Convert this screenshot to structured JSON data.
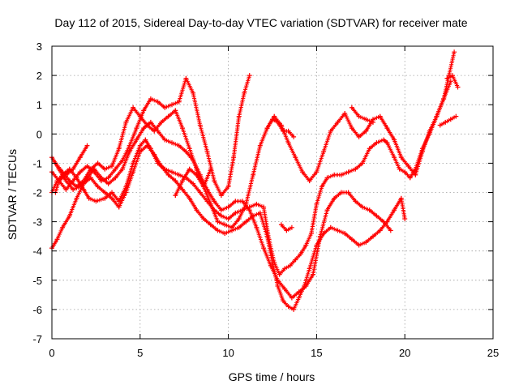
{
  "chart_data": {
    "type": "scatter",
    "title": "Day 112 of 2015, Sidereal Day-to-day VTEC variation (SDTVAR) for receiver mate",
    "xlabel": "GPS time / hours",
    "ylabel": "SDTVAR / TECUs",
    "xlim": [
      0,
      25
    ],
    "ylim": [
      -7,
      3
    ],
    "xticks": [
      "0",
      "5",
      "10",
      "15",
      "20",
      "25"
    ],
    "yticks": [
      "3",
      "2",
      "1",
      "0",
      "-1",
      "-2",
      "-3",
      "-4",
      "-5",
      "-6",
      "-7"
    ],
    "grid": true,
    "marker": "+",
    "color": "#ff0000",
    "series": [
      {
        "x": [
          0.0,
          0.3,
          0.6,
          1.0,
          1.4,
          1.8,
          2.1,
          2.5,
          3.0,
          3.4,
          3.8,
          4.2,
          4.6,
          5.0,
          5.3,
          5.6,
          6.0,
          6.4,
          6.8,
          7.2,
          7.6,
          8.0,
          8.4,
          8.8,
          9.2,
          9.6,
          10.0,
          10.4,
          10.8,
          11.2,
          11.6,
          12.0,
          12.3,
          12.6,
          12.9,
          13.2,
          13.5,
          13.8,
          14.1,
          14.4,
          14.7,
          15.0,
          15.3,
          15.6,
          16.0,
          16.4,
          16.8,
          17.2,
          17.6,
          18.0,
          18.4,
          18.8,
          19.0,
          19.4,
          19.7,
          20.0,
          20.3,
          20.6,
          21.0,
          21.4,
          21.8,
          22.2,
          22.5,
          22.8
        ],
        "y": [
          -2.0,
          -1.6,
          -1.4,
          -1.2,
          -1.5,
          -1.9,
          -2.2,
          -2.3,
          -2.2,
          -2.0,
          -2.3,
          -1.8,
          -1.0,
          -0.4,
          -0.2,
          -0.5,
          -1.0,
          -1.2,
          -1.3,
          -1.4,
          -1.5,
          -1.7,
          -2.0,
          -2.3,
          -2.6,
          -2.8,
          -2.9,
          -2.7,
          -2.6,
          -2.5,
          -2.4,
          -2.5,
          -3.6,
          -4.4,
          -4.8,
          -4.6,
          -4.5,
          -4.3,
          -4.1,
          -3.8,
          -3.4,
          -2.4,
          -1.8,
          -1.5,
          -1.4,
          -1.4,
          -1.3,
          -1.2,
          -1.0,
          -0.5,
          -0.3,
          -0.2,
          -0.3,
          -0.8,
          -1.2,
          -1.3,
          -1.5,
          -1.2,
          -0.5,
          0.0,
          0.6,
          1.2,
          2.0,
          2.8
        ]
      },
      {
        "x": [
          0.0,
          0.3,
          0.6,
          1.0,
          1.4,
          1.8,
          2.2,
          2.6,
          3.0,
          3.4,
          3.8,
          4.2,
          4.6,
          5.0,
          5.4,
          5.8,
          6.2,
          6.6,
          7.0,
          7.4,
          7.8,
          8.2,
          8.6,
          9.0,
          9.4,
          9.8,
          10.2,
          10.6,
          11.0,
          11.4,
          11.8,
          12.2,
          12.5,
          12.8,
          13.1,
          13.4,
          13.7,
          14.0,
          14.3,
          14.6,
          15.0,
          15.4,
          15.8,
          16.2,
          16.6,
          17.0,
          17.4,
          17.8,
          18.2,
          18.6,
          19.0,
          19.4,
          19.8,
          20.0
        ],
        "y": [
          -3.9,
          -3.6,
          -3.2,
          -2.8,
          -2.2,
          -1.7,
          -1.5,
          -1.8,
          -2.0,
          -2.2,
          -2.5,
          -2.0,
          -1.3,
          -0.6,
          -0.4,
          -0.7,
          -1.1,
          -1.4,
          -1.6,
          -1.9,
          -2.2,
          -2.6,
          -2.9,
          -3.1,
          -3.3,
          -3.4,
          -3.3,
          -3.2,
          -3.0,
          -2.8,
          -2.7,
          -3.5,
          -4.4,
          -5.2,
          -5.7,
          -5.9,
          -6.0,
          -5.6,
          -5.2,
          -4.6,
          -3.8,
          -3.4,
          -3.2,
          -3.3,
          -3.4,
          -3.6,
          -3.8,
          -3.7,
          -3.5,
          -3.3,
          -3.0,
          -2.6,
          -2.2,
          -2.9
        ]
      },
      {
        "x": [
          0.0,
          0.4,
          0.8,
          1.2,
          1.6,
          2.0,
          2.4,
          2.8,
          3.2,
          3.6,
          4.0,
          4.4,
          4.8,
          5.2,
          5.6,
          6.0,
          6.4,
          6.8,
          7.2,
          7.6,
          8.0,
          8.4,
          8.8,
          9.2,
          9.6,
          10.0,
          10.4,
          10.8,
          11.2,
          11.6,
          12.0,
          12.4,
          12.8,
          13.2,
          13.6,
          14.0,
          14.4,
          14.8,
          15.2,
          15.6,
          16.0,
          16.4,
          16.8,
          17.2,
          17.6,
          18.0,
          18.4,
          18.8,
          19.2
        ],
        "y": [
          -0.8,
          -1.2,
          -1.6,
          -1.9,
          -1.8,
          -1.5,
          -1.2,
          -1.5,
          -1.7,
          -1.5,
          -1.2,
          -0.6,
          -0.2,
          0.2,
          0.4,
          0.1,
          -0.2,
          -0.3,
          -0.4,
          -0.6,
          -0.9,
          -1.4,
          -1.9,
          -2.3,
          -2.6,
          -2.5,
          -2.3,
          -2.3,
          -2.6,
          -3.2,
          -3.9,
          -4.5,
          -5.0,
          -5.3,
          -5.6,
          -5.4,
          -5.2,
          -4.8,
          -3.5,
          -2.6,
          -2.2,
          -2.0,
          -2.0,
          -2.3,
          -2.5,
          -2.6,
          -2.8,
          -3.0,
          -3.3
        ]
      },
      {
        "x": [
          0.0,
          0.4,
          0.8,
          1.2,
          1.6,
          2.0,
          2.4,
          2.8,
          3.2,
          3.6,
          4.0,
          4.4,
          4.8,
          5.2,
          5.6,
          6.0,
          6.4,
          6.8,
          7.2,
          7.6,
          8.0,
          8.4,
          8.8,
          9.2,
          9.6,
          10.0,
          10.3,
          10.6,
          10.9,
          11.2
        ],
        "y": [
          -1.3,
          -1.6,
          -1.9,
          -1.6,
          -1.3,
          -1.1,
          -1.3,
          -1.6,
          -1.5,
          -1.2,
          -0.9,
          -0.4,
          0.2,
          0.8,
          1.2,
          1.1,
          0.9,
          1.0,
          1.1,
          1.9,
          1.4,
          0.3,
          -0.6,
          -1.6,
          -2.1,
          -1.8,
          -0.8,
          0.6,
          1.4,
          2.0
        ]
      },
      {
        "x": [
          0.2,
          0.6,
          1.0,
          1.4,
          1.8,
          2.2,
          2.6,
          3.0,
          3.4,
          3.8,
          4.2,
          4.6,
          5.0,
          5.4,
          5.8,
          6.2,
          6.6,
          7.0,
          7.4,
          7.8,
          8.2,
          8.6,
          9.0,
          9.4,
          9.8,
          10.2,
          10.6,
          11.0,
          11.4,
          11.8,
          12.2,
          12.6,
          13.0,
          13.4,
          13.8,
          14.2,
          14.6,
          15.0,
          15.4,
          15.8,
          16.2,
          16.6,
          17.0,
          17.4,
          17.8,
          18.2,
          18.6,
          19.0,
          19.4,
          19.8,
          20.2,
          20.6,
          21.0,
          21.4,
          21.8,
          22.2,
          22.6
        ],
        "y": [
          -1.0,
          -1.3,
          -1.6,
          -1.8,
          -1.6,
          -1.2,
          -1.0,
          -1.2,
          -1.1,
          -0.5,
          0.4,
          0.9,
          0.6,
          0.3,
          0.1,
          0.4,
          0.6,
          0.8,
          0.2,
          -0.5,
          -1.2,
          -1.8,
          -2.4,
          -3.0,
          -3.1,
          -3.2,
          -2.9,
          -2.4,
          -1.4,
          -0.4,
          0.2,
          0.6,
          0.3,
          -0.3,
          -0.8,
          -1.3,
          -1.6,
          -1.3,
          -0.6,
          0.1,
          0.4,
          0.7,
          0.2,
          -0.1,
          0.1,
          0.5,
          0.6,
          0.2,
          -0.2,
          -0.8,
          -1.1,
          -1.4,
          -0.6,
          0.1,
          0.6,
          1.2,
          1.8
        ]
      },
      {
        "x": [
          2.0,
          1.6,
          1.2,
          0.8,
          0.4,
          0.2
        ],
        "y": [
          -0.4,
          -0.8,
          -1.2,
          -1.4,
          -1.6,
          -2.0
        ]
      },
      {
        "x": [
          7.0,
          7.4,
          7.8,
          8.2,
          8.6,
          9.0
        ],
        "y": [
          -2.1,
          -1.6,
          -1.2,
          -1.4,
          -1.8,
          -1.2
        ]
      },
      {
        "x": [
          12.2,
          12.5,
          12.8,
          13.1,
          13.4,
          13.7
        ],
        "y": [
          0.2,
          0.5,
          0.4,
          0.1,
          0.1,
          -0.1
        ]
      },
      {
        "x": [
          17.0,
          17.4,
          17.8,
          18.2
        ],
        "y": [
          0.9,
          0.6,
          0.5,
          0.4
        ]
      },
      {
        "x": [
          22.0,
          22.3,
          22.6,
          22.9
        ],
        "y": [
          0.3,
          0.4,
          0.5,
          0.6
        ]
      },
      {
        "x": [
          22.4,
          22.7,
          23.0
        ],
        "y": [
          1.9,
          2.0,
          1.6
        ]
      },
      {
        "x": [
          13.0,
          13.3,
          13.6
        ],
        "y": [
          -3.1,
          -3.3,
          -3.2
        ]
      }
    ]
  }
}
